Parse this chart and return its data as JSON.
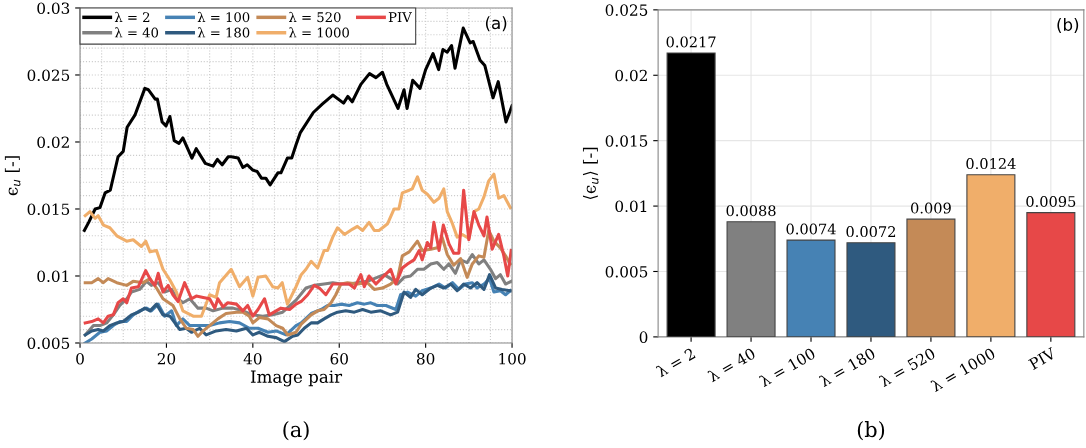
{
  "chart_data": [
    {
      "type": "line",
      "xlabel": "Image pair",
      "ylabel": "ϵ$_{u}$ [-]",
      "xlim": [
        0,
        100
      ],
      "xticks": [
        0,
        20,
        40,
        60,
        80,
        100
      ],
      "ylim": [
        0.005,
        0.03
      ],
      "yticks": [
        0.005,
        0.01,
        0.015,
        0.02,
        0.025,
        0.03
      ],
      "grid": true,
      "legend": "top left",
      "line_style": "solid",
      "marker": "none",
      "annotations": [
        "(a)",
        "(a)"
      ],
      "series": [
        {
          "name": "λ = 2",
          "color": "#000000",
          "x": [
            1,
            2,
            3.5,
            4.6,
            5.8,
            7,
            8.8,
            10,
            10.9,
            12.7,
            15,
            15.8,
            17.4,
            17.9,
            19,
            19.9,
            20.8,
            21.8,
            22.9,
            23.8,
            25.9,
            26.9,
            29,
            30.8,
            31.8,
            32.9,
            34.3,
            35,
            36.6,
            37.7,
            38.7,
            40,
            41,
            42,
            43,
            44,
            45.8,
            46.5,
            48,
            49,
            50,
            51,
            54,
            56,
            58.5,
            61,
            62,
            63,
            65,
            67,
            68.5,
            70,
            71,
            73.6,
            75,
            75.7,
            77,
            78.7,
            80,
            81.7,
            83,
            84,
            85,
            86,
            86.8,
            88.7,
            90.3,
            91,
            92.6,
            93.7,
            95.6,
            96.8,
            98.6,
            100
          ],
          "values": [
            0.0134,
            0.014,
            0.015,
            0.0151,
            0.0162,
            0.0164,
            0.0189,
            0.0193,
            0.0211,
            0.022,
            0.024,
            0.0239,
            0.0232,
            0.0232,
            0.0215,
            0.0212,
            0.0219,
            0.0201,
            0.0199,
            0.0203,
            0.0188,
            0.0195,
            0.0184,
            0.0182,
            0.0187,
            0.0183,
            0.0189,
            0.0189,
            0.0188,
            0.0181,
            0.0183,
            0.0179,
            0.0178,
            0.0173,
            0.0173,
            0.0168,
            0.0177,
            0.0177,
            0.0188,
            0.0188,
            0.0198,
            0.0207,
            0.0222,
            0.0228,
            0.0235,
            0.0229,
            0.0234,
            0.023,
            0.0243,
            0.0251,
            0.0248,
            0.0252,
            0.0243,
            0.0225,
            0.0239,
            0.0225,
            0.0246,
            0.024,
            0.0254,
            0.0266,
            0.0254,
            0.0269,
            0.0267,
            0.0272,
            0.0255,
            0.0285,
            0.0274,
            0.0275,
            0.0261,
            0.0257,
            0.0233,
            0.0245,
            0.0215,
            0.0227
          ]
        },
        {
          "name": "λ = 40",
          "color": "#808080",
          "x": [
            1.2,
            3.1,
            4.6,
            6.2,
            7.7,
            9.2,
            10.8,
            11.9,
            13.8,
            15.4,
            16.5,
            18.1,
            19.6,
            21.2,
            22.3,
            23.8,
            25.4,
            27.3,
            29.2,
            30.8,
            33.1,
            35.4,
            37.7,
            40,
            42.3,
            44.6,
            46.9,
            50,
            52.3,
            54.2,
            56.5,
            58.5,
            60.4,
            62.3,
            64.2,
            66.5,
            68.8,
            70.4,
            71.9,
            73.5,
            75,
            76.5,
            78.1,
            79.6,
            81.2,
            82.7,
            84.2,
            85.4,
            86.9,
            88.1,
            89.6,
            90.8,
            92.3,
            93.5,
            95,
            96.2,
            97.3,
            98.5,
            99.8
          ],
          "values": [
            0.0056,
            0.0063,
            0.0063,
            0.0065,
            0.0071,
            0.0078,
            0.0083,
            0.0088,
            0.009,
            0.0096,
            0.0093,
            0.0095,
            0.0088,
            0.009,
            0.0084,
            0.008,
            0.0083,
            0.0076,
            0.0076,
            0.0074,
            0.0076,
            0.0076,
            0.0074,
            0.0071,
            0.007,
            0.0071,
            0.0073,
            0.0082,
            0.0091,
            0.0093,
            0.0094,
            0.0095,
            0.0094,
            0.0094,
            0.0095,
            0.0096,
            0.0099,
            0.0101,
            0.0098,
            0.0094,
            0.0099,
            0.01,
            0.0105,
            0.0105,
            0.0109,
            0.011,
            0.0105,
            0.0109,
            0.0102,
            0.0112,
            0.011,
            0.0116,
            0.0109,
            0.0112,
            0.0105,
            0.0098,
            0.0101,
            0.0094,
            0.0096
          ]
        },
        {
          "name": "λ = 100",
          "color": "#4682b4",
          "x": [
            1.2,
            2.7,
            4.6,
            6.2,
            7.7,
            9.2,
            10.8,
            12.3,
            13.8,
            15.4,
            16.5,
            18.1,
            19.6,
            21.2,
            22.3,
            23.8,
            25.4,
            27.7,
            30,
            32.3,
            34.6,
            36.9,
            39.2,
            41.2,
            43.5,
            45.4,
            47.7,
            50,
            51.2,
            53.5,
            55.8,
            57.3,
            58.8,
            60.4,
            62.3,
            64.2,
            65.8,
            67.3,
            68.8,
            70.8,
            73.1,
            74.2,
            75.8,
            77.7,
            79.2,
            81.2,
            83.1,
            84.6,
            86.2,
            87.7,
            89.2,
            90.8,
            91.9,
            93.5,
            94.8,
            95.8,
            97.3,
            98.5,
            99.6
          ],
          "values": [
            0.005,
            0.0053,
            0.0058,
            0.0059,
            0.0063,
            0.0066,
            0.0066,
            0.0071,
            0.0074,
            0.0076,
            0.0074,
            0.0079,
            0.007,
            0.0074,
            0.0063,
            0.0068,
            0.0063,
            0.0063,
            0.0063,
            0.0065,
            0.0066,
            0.0065,
            0.0061,
            0.0061,
            0.0058,
            0.0059,
            0.0056,
            0.0063,
            0.0065,
            0.0072,
            0.0075,
            0.0078,
            0.0078,
            0.0079,
            0.0078,
            0.008,
            0.0079,
            0.008,
            0.0078,
            0.0078,
            0.0075,
            0.0086,
            0.0088,
            0.0085,
            0.0089,
            0.0091,
            0.0094,
            0.0091,
            0.0095,
            0.009,
            0.0094,
            0.0095,
            0.0091,
            0.0094,
            0.0098,
            0.0088,
            0.0089,
            0.0086,
            0.0089
          ]
        },
        {
          "name": "λ = 180",
          "color": "#2f5a7f",
          "x": [
            1.2,
            2.7,
            4.2,
            5.4,
            6.9,
            8.5,
            10,
            11.9,
            13.5,
            15,
            16.2,
            17.7,
            19.2,
            20.8,
            23.1,
            24.6,
            25.8,
            27.7,
            29.2,
            31.5,
            33.8,
            36.2,
            38.5,
            40,
            41.5,
            43.5,
            45.4,
            47.3,
            49.2,
            50.4,
            51.9,
            53.5,
            55,
            56.5,
            58.1,
            59.6,
            61.5,
            63.5,
            65.4,
            67.3,
            69.6,
            71.9,
            73.5,
            75,
            76.5,
            77.7,
            79.2,
            81.2,
            82.7,
            84.2,
            85.8,
            87.3,
            88.8,
            90.4,
            91.9,
            93.5,
            94.8,
            96.2,
            97.7,
            99.6
          ],
          "values": [
            0.0056,
            0.0059,
            0.006,
            0.0059,
            0.0063,
            0.0065,
            0.0066,
            0.0071,
            0.0073,
            0.0076,
            0.0074,
            0.0079,
            0.0071,
            0.007,
            0.006,
            0.0061,
            0.0058,
            0.0061,
            0.0056,
            0.0059,
            0.006,
            0.0059,
            0.0061,
            0.0056,
            0.0058,
            0.0055,
            0.0054,
            0.0051,
            0.0055,
            0.0056,
            0.0061,
            0.0065,
            0.0065,
            0.0068,
            0.0071,
            0.0073,
            0.0074,
            0.0073,
            0.0075,
            0.0073,
            0.0074,
            0.0071,
            0.0073,
            0.0088,
            0.0084,
            0.009,
            0.0086,
            0.0091,
            0.0093,
            0.0091,
            0.0094,
            0.0089,
            0.0094,
            0.0091,
            0.0095,
            0.009,
            0.0101,
            0.0091,
            0.009,
            0.0089
          ]
        },
        {
          "name": "λ = 520",
          "color": "#c48a57",
          "x": [
            1.2,
            2.7,
            4.2,
            5.4,
            6.5,
            8.5,
            10.8,
            12.3,
            14.6,
            16.2,
            17.7,
            19.2,
            21.5,
            23.1,
            24.6,
            26.2,
            27.3,
            28.5,
            30,
            31.9,
            33.8,
            36.2,
            37.7,
            39.2,
            40,
            41.5,
            43.5,
            45.4,
            46.9,
            48.1,
            50,
            51.2,
            53.5,
            55,
            56.5,
            58.1,
            59.2,
            60.4,
            61.9,
            64.2,
            66.5,
            68.1,
            70,
            71.9,
            73.5,
            74.6,
            76.2,
            78.1,
            79.2,
            81.2,
            82.7,
            83.8,
            85,
            86.5,
            88.1,
            89.6,
            90.8,
            92.3,
            93.5,
            94.6,
            95.8,
            97.3,
            98.5,
            99.6
          ],
          "values": [
            0.0095,
            0.0095,
            0.0098,
            0.0095,
            0.0098,
            0.0095,
            0.0093,
            0.0096,
            0.0095,
            0.0098,
            0.0091,
            0.0083,
            0.0078,
            0.0068,
            0.0061,
            0.006,
            0.0055,
            0.0059,
            0.0063,
            0.0068,
            0.0072,
            0.0073,
            0.0073,
            0.007,
            0.0065,
            0.0069,
            0.0068,
            0.0063,
            0.0061,
            0.0056,
            0.0058,
            0.0064,
            0.0071,
            0.0074,
            0.0075,
            0.008,
            0.0086,
            0.0094,
            0.0095,
            0.0094,
            0.0095,
            0.009,
            0.0091,
            0.0094,
            0.0098,
            0.0115,
            0.0118,
            0.0126,
            0.0119,
            0.012,
            0.0121,
            0.0129,
            0.0116,
            0.0108,
            0.0113,
            0.0099,
            0.0109,
            0.0115,
            0.0114,
            0.0134,
            0.0126,
            0.0121,
            0.0115,
            0.0109
          ]
        },
        {
          "name": "λ = 1000",
          "color": "#f0ae6a",
          "x": [
            1.2,
            2.3,
            3.5,
            4.2,
            5.4,
            6.9,
            8.5,
            10.8,
            12.3,
            14.2,
            15.2,
            16.2,
            17.7,
            19.2,
            20.8,
            22.3,
            23.8,
            26.2,
            28.1,
            30,
            31.5,
            32.3,
            35,
            36.9,
            38.8,
            40,
            41.2,
            43,
            44.6,
            45.8,
            46.8,
            48,
            50,
            51.2,
            52.3,
            53.5,
            55,
            56.5,
            57.3,
            58.5,
            59.6,
            61.2,
            63.1,
            64.2,
            65.4,
            66.9,
            68.1,
            69.2,
            71.2,
            72.7,
            73.8,
            74.6,
            76.2,
            76.9,
            78.1,
            79.2,
            80.4,
            81.9,
            83.1,
            84.2,
            85,
            86.2,
            87.3,
            88.5,
            90,
            91.2,
            92.3,
            93.5,
            94.6,
            95.8,
            96.9,
            98.1,
            99.6
          ],
          "values": [
            0.0145,
            0.0148,
            0.0143,
            0.0145,
            0.0138,
            0.0136,
            0.013,
            0.0126,
            0.0127,
            0.0122,
            0.0126,
            0.0118,
            0.0119,
            0.0105,
            0.0097,
            0.0088,
            0.0074,
            0.007,
            0.007,
            0.0086,
            0.0084,
            0.0095,
            0.0105,
            0.0092,
            0.0099,
            0.0085,
            0.0099,
            0.01,
            0.0092,
            0.0091,
            0.0095,
            0.0079,
            0.0092,
            0.0101,
            0.0105,
            0.0111,
            0.0106,
            0.0119,
            0.0119,
            0.0129,
            0.0136,
            0.0131,
            0.0135,
            0.0137,
            0.0134,
            0.014,
            0.0134,
            0.0134,
            0.0139,
            0.015,
            0.015,
            0.0162,
            0.0164,
            0.0165,
            0.0174,
            0.0164,
            0.0161,
            0.0155,
            0.0158,
            0.0165,
            0.0148,
            0.0139,
            0.0129,
            0.0131,
            0.0128,
            0.0148,
            0.015,
            0.0159,
            0.0171,
            0.0176,
            0.0158,
            0.016,
            0.0151
          ]
        },
        {
          "name": "PIV",
          "color": "#e74848",
          "x": [
            1.2,
            2.7,
            4.2,
            5.4,
            6.5,
            7.7,
            8.8,
            10,
            10.8,
            11.9,
            13.5,
            15.2,
            16.5,
            17.3,
            18.1,
            19.2,
            20.4,
            21.5,
            22.7,
            24.2,
            25.8,
            26.9,
            28.5,
            30,
            31.2,
            31.9,
            33.1,
            34.2,
            36.2,
            37.7,
            38.8,
            40,
            41.2,
            42.7,
            43.8,
            45.4,
            46.5,
            48.5,
            50,
            51.2,
            52.7,
            54.2,
            55.4,
            56.9,
            58.5,
            60.4,
            62.3,
            63.5,
            65,
            65.8,
            66.9,
            68.5,
            70,
            71.9,
            73.1,
            74.6,
            75.8,
            77.3,
            78.5,
            79.2,
            80.4,
            81.2,
            81.9,
            83.1,
            84.1,
            85.4,
            86.5,
            87.7,
            88.8,
            90,
            91.2,
            92.3,
            93.5,
            94.2,
            95.4,
            96.9,
            98.1,
            99,
            99.8
          ],
          "values": [
            0.0065,
            0.0066,
            0.0068,
            0.0065,
            0.007,
            0.0071,
            0.008,
            0.0083,
            0.008,
            0.0091,
            0.0092,
            0.0104,
            0.0096,
            0.0093,
            0.0102,
            0.0088,
            0.0093,
            0.0086,
            0.0081,
            0.0095,
            0.0083,
            0.0085,
            0.0084,
            0.0083,
            0.0076,
            0.0083,
            0.0077,
            0.008,
            0.0079,
            0.0074,
            0.0078,
            0.007,
            0.0075,
            0.0083,
            0.0071,
            0.0074,
            0.0076,
            0.0075,
            0.0079,
            0.0081,
            0.0086,
            0.0093,
            0.0091,
            0.0086,
            0.0094,
            0.0094,
            0.0094,
            0.0091,
            0.0101,
            0.0092,
            0.01,
            0.0094,
            0.0099,
            0.0105,
            0.0094,
            0.0106,
            0.0109,
            0.0112,
            0.0119,
            0.0112,
            0.0125,
            0.0121,
            0.014,
            0.0119,
            0.0138,
            0.0124,
            0.0117,
            0.0117,
            0.0164,
            0.0127,
            0.0148,
            0.0138,
            0.013,
            0.0144,
            0.012,
            0.0131,
            0.0115,
            0.01,
            0.0119
          ]
        }
      ]
    },
    {
      "type": "bar",
      "ylabel": "⟨ϵ$_{u}$⟩ [-]",
      "categories": [
        "λ = 2",
        "λ = 40",
        "λ = 100",
        "λ = 180",
        "λ = 520",
        "λ = 1000",
        "PIV"
      ],
      "values": [
        0.0217,
        0.0088,
        0.0074,
        0.0072,
        0.009,
        0.0124,
        0.0095
      ],
      "colors": [
        "#000000",
        "#808080",
        "#4682b4",
        "#2f5a7f",
        "#c48a57",
        "#f0ae6a",
        "#e74848"
      ],
      "ylim": [
        0,
        0.025
      ],
      "yticks": [
        0,
        0.005,
        0.01,
        0.015,
        0.02,
        0.025
      ],
      "grid": true,
      "data_labels": true,
      "annotations": [
        "(b)",
        "(b)"
      ]
    }
  ]
}
